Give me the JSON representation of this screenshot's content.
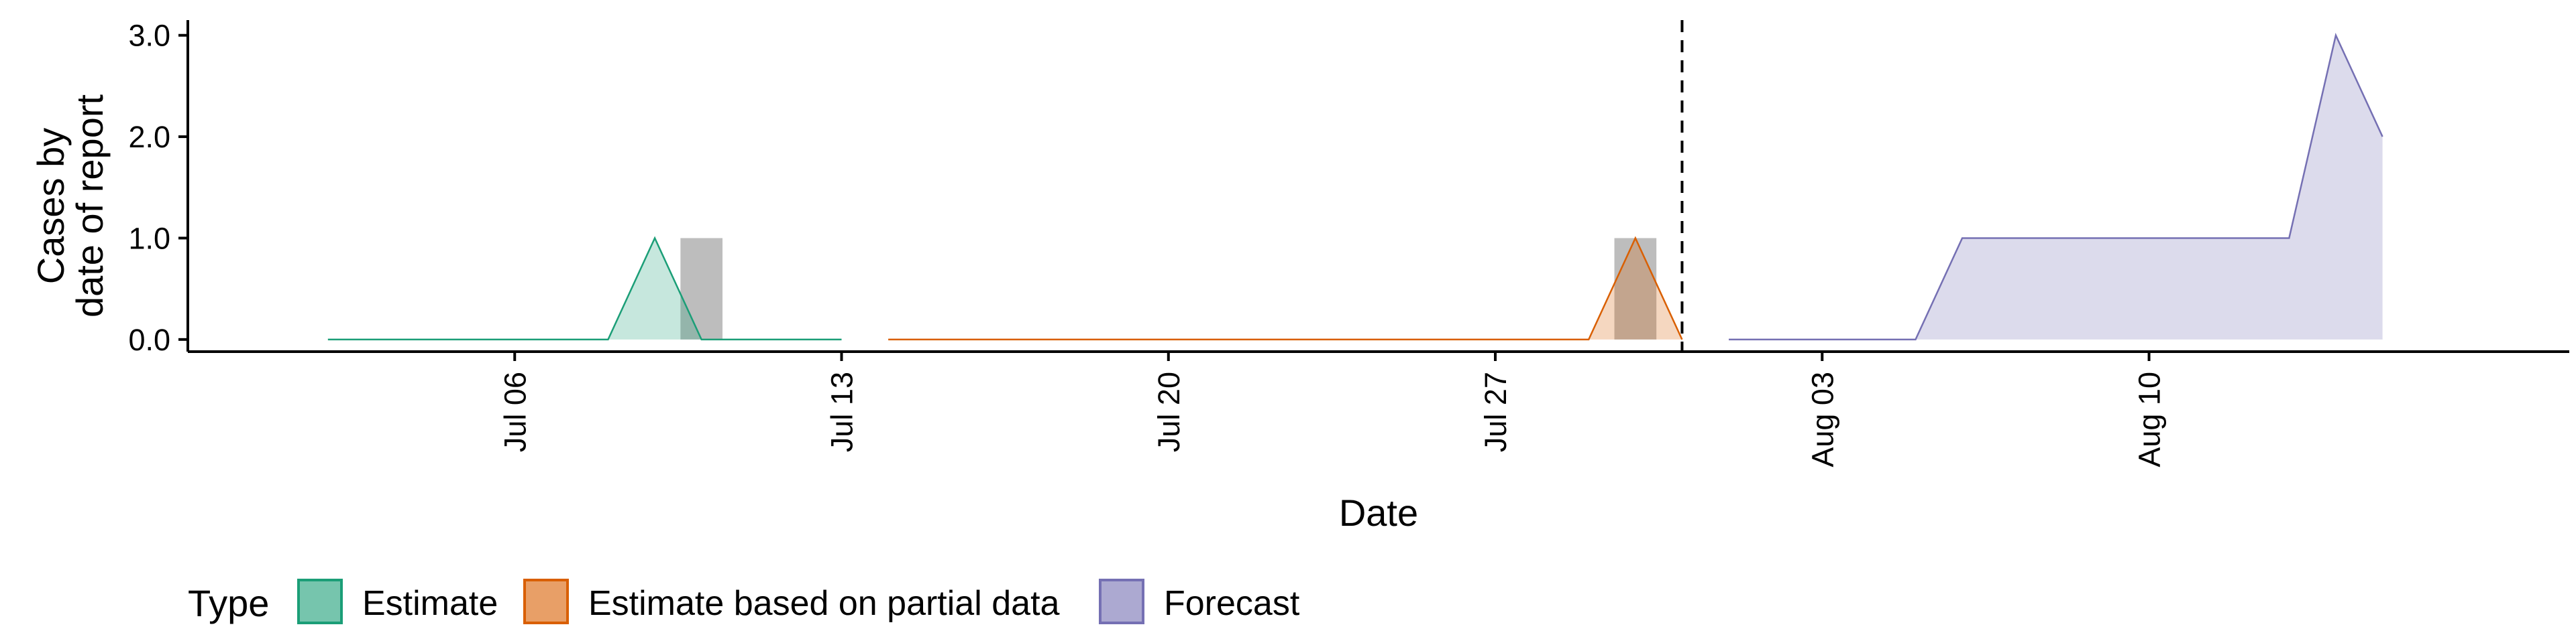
{
  "chart_data": {
    "type": "area",
    "xlabel": "Date",
    "ylabel": "Cases by\ndate of report",
    "ylim": [
      -0.12,
      3.15
    ],
    "xlim": [
      "2020-06-29",
      "2020-08-19"
    ],
    "y_ticks": [
      0,
      1,
      2,
      3
    ],
    "y_tick_labels": [
      "0.0",
      "1.0",
      "2.0",
      "3.0"
    ],
    "x_ticks": [
      "2020-07-06",
      "2020-07-13",
      "2020-07-20",
      "2020-07-27",
      "2020-08-03",
      "2020-08-10"
    ],
    "x_tick_labels": [
      "Jul 06",
      "Jul 13",
      "Jul 20",
      "Jul 27",
      "Aug 03",
      "Aug 10"
    ],
    "forecast_cutoff": "2020-07-31",
    "observed_cases": [
      {
        "date": "2020-07-10",
        "value": 1
      },
      {
        "date": "2020-07-30",
        "value": 1
      }
    ],
    "series": [
      {
        "name": "Estimate",
        "fill": "#1B9E77",
        "x": [
          "2020-07-02",
          "2020-07-03",
          "2020-07-04",
          "2020-07-05",
          "2020-07-06",
          "2020-07-07",
          "2020-07-08",
          "2020-07-09",
          "2020-07-10",
          "2020-07-11",
          "2020-07-12",
          "2020-07-13"
        ],
        "values": [
          0,
          0,
          0,
          0,
          0,
          0,
          0,
          1,
          0,
          0,
          0,
          0
        ]
      },
      {
        "name": "Estimate based on partial data",
        "fill": "#D95F02",
        "x": [
          "2020-07-14",
          "2020-07-15",
          "2020-07-16",
          "2020-07-17",
          "2020-07-18",
          "2020-07-19",
          "2020-07-20",
          "2020-07-21",
          "2020-07-22",
          "2020-07-23",
          "2020-07-24",
          "2020-07-25",
          "2020-07-26",
          "2020-07-27",
          "2020-07-28",
          "2020-07-29",
          "2020-07-30",
          "2020-07-31"
        ],
        "values": [
          0,
          0,
          0,
          0,
          0,
          0,
          0,
          0,
          0,
          0,
          0,
          0,
          0,
          0,
          0,
          0,
          1,
          0
        ]
      },
      {
        "name": "Forecast",
        "fill": "#7570B3",
        "x": [
          "2020-08-01",
          "2020-08-02",
          "2020-08-03",
          "2020-08-04",
          "2020-08-05",
          "2020-08-06",
          "2020-08-07",
          "2020-08-08",
          "2020-08-09",
          "2020-08-10",
          "2020-08-11",
          "2020-08-12",
          "2020-08-13",
          "2020-08-14",
          "2020-08-15"
        ],
        "values": [
          0,
          0,
          0,
          0,
          0,
          1,
          1,
          1,
          1,
          1,
          1,
          1,
          1,
          3,
          2
        ]
      }
    ],
    "legend": {
      "title": "Type",
      "position": "bottom",
      "entries": [
        "Estimate",
        "Estimate based on partial data",
        "Forecast"
      ]
    }
  }
}
